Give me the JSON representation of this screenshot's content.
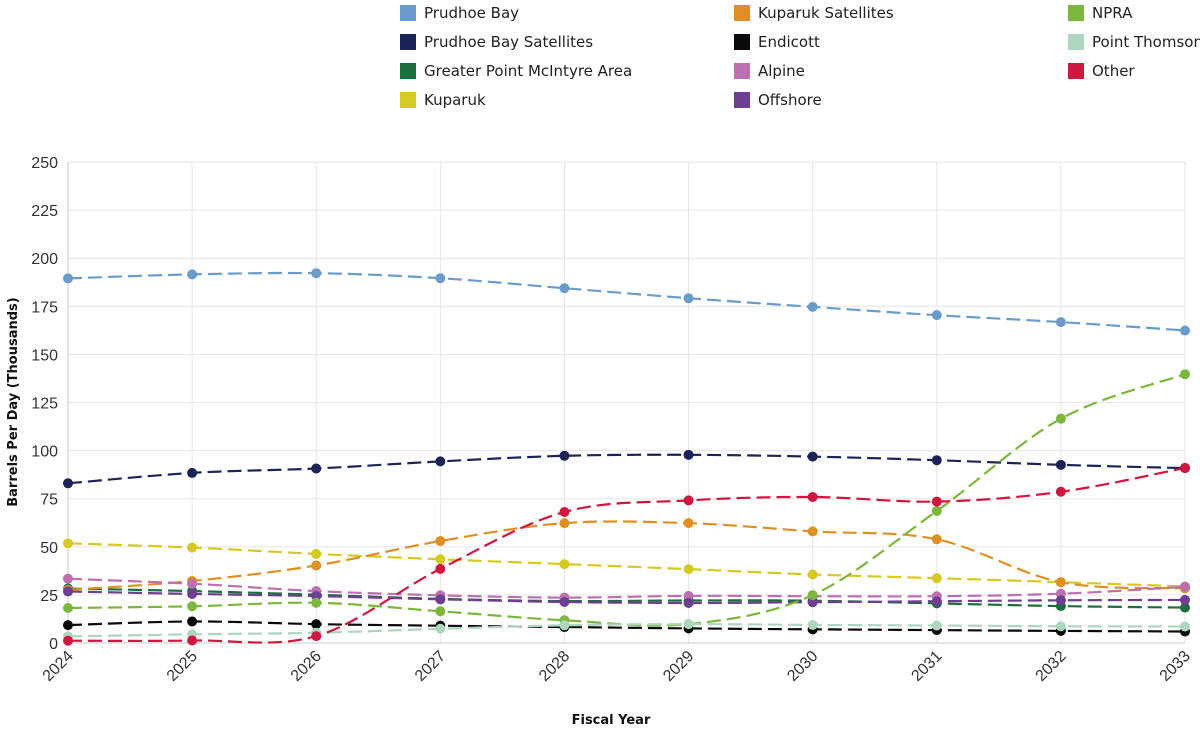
{
  "chart_data": {
    "type": "line",
    "xlabel": "Fiscal Year",
    "ylabel": "Barrels Per Day (Thousands)",
    "ylim": [
      0,
      250
    ],
    "yticks": [
      0,
      25,
      50,
      75,
      100,
      125,
      150,
      175,
      200,
      225,
      250
    ],
    "categories": [
      "2024",
      "2025",
      "2026",
      "2027",
      "2028",
      "2029",
      "2030",
      "2031",
      "2032",
      "2033"
    ],
    "grid": true,
    "legend_position": "top",
    "line_style": "dashed",
    "series": [
      {
        "name": "Prudhoe Bay",
        "color": "#6b9bc9",
        "values": [
          189.5,
          191.6,
          192.2,
          189.6,
          184.4,
          179.2,
          174.7,
          170.4,
          166.8,
          162.4
        ]
      },
      {
        "name": "Prudhoe Bay Satellites",
        "color": "#1c2356",
        "values": [
          83.0,
          88.4,
          90.7,
          94.4,
          97.3,
          97.8,
          96.9,
          95.0,
          92.6,
          90.9
        ]
      },
      {
        "name": "Greater Point McIntyre Area",
        "color": "#1d6e3e",
        "values": [
          28.3,
          27.0,
          25.1,
          22.9,
          21.8,
          22.1,
          22.0,
          20.6,
          19.2,
          18.4
        ]
      },
      {
        "name": "Kuparuk",
        "color": "#d4ca21",
        "values": [
          51.8,
          49.6,
          46.3,
          43.5,
          41.0,
          38.4,
          35.6,
          33.7,
          31.6,
          29.4
        ]
      },
      {
        "name": "Kuparuk Satellites",
        "color": "#de9024",
        "values": [
          27.6,
          32.2,
          40.3,
          53.0,
          62.3,
          62.3,
          58.0,
          53.9,
          31.6,
          28.4
        ]
      },
      {
        "name": "Endicott",
        "color": "#0a0a0a",
        "values": [
          9.3,
          11.2,
          9.8,
          9.0,
          8.3,
          7.6,
          7.1,
          6.7,
          6.3,
          6.0
        ]
      },
      {
        "name": "Alpine",
        "color": "#bd70b0",
        "values": [
          33.4,
          30.8,
          27.0,
          24.8,
          23.6,
          24.5,
          24.3,
          24.3,
          25.6,
          29.2
        ]
      },
      {
        "name": "Offshore",
        "color": "#6d3e92",
        "values": [
          26.8,
          25.5,
          24.4,
          22.7,
          21.3,
          20.8,
          21.2,
          21.7,
          22.2,
          22.4
        ]
      },
      {
        "name": "NPRA",
        "color": "#7db63c",
        "values": [
          18.2,
          19.1,
          20.9,
          16.5,
          11.8,
          9.8,
          24.9,
          68.6,
          116.6,
          139.7
        ]
      },
      {
        "name": "Point Thomson",
        "color": "#aed6bf",
        "values": [
          3.4,
          4.5,
          5.3,
          7.4,
          9.2,
          9.8,
          9.4,
          9.1,
          8.7,
          8.6
        ]
      },
      {
        "name": "Other",
        "color": "#d0173f",
        "values": [
          1.2,
          1.3,
          3.6,
          38.5,
          68.1,
          74.1,
          75.9,
          73.5,
          78.6,
          91.0
        ]
      }
    ]
  }
}
